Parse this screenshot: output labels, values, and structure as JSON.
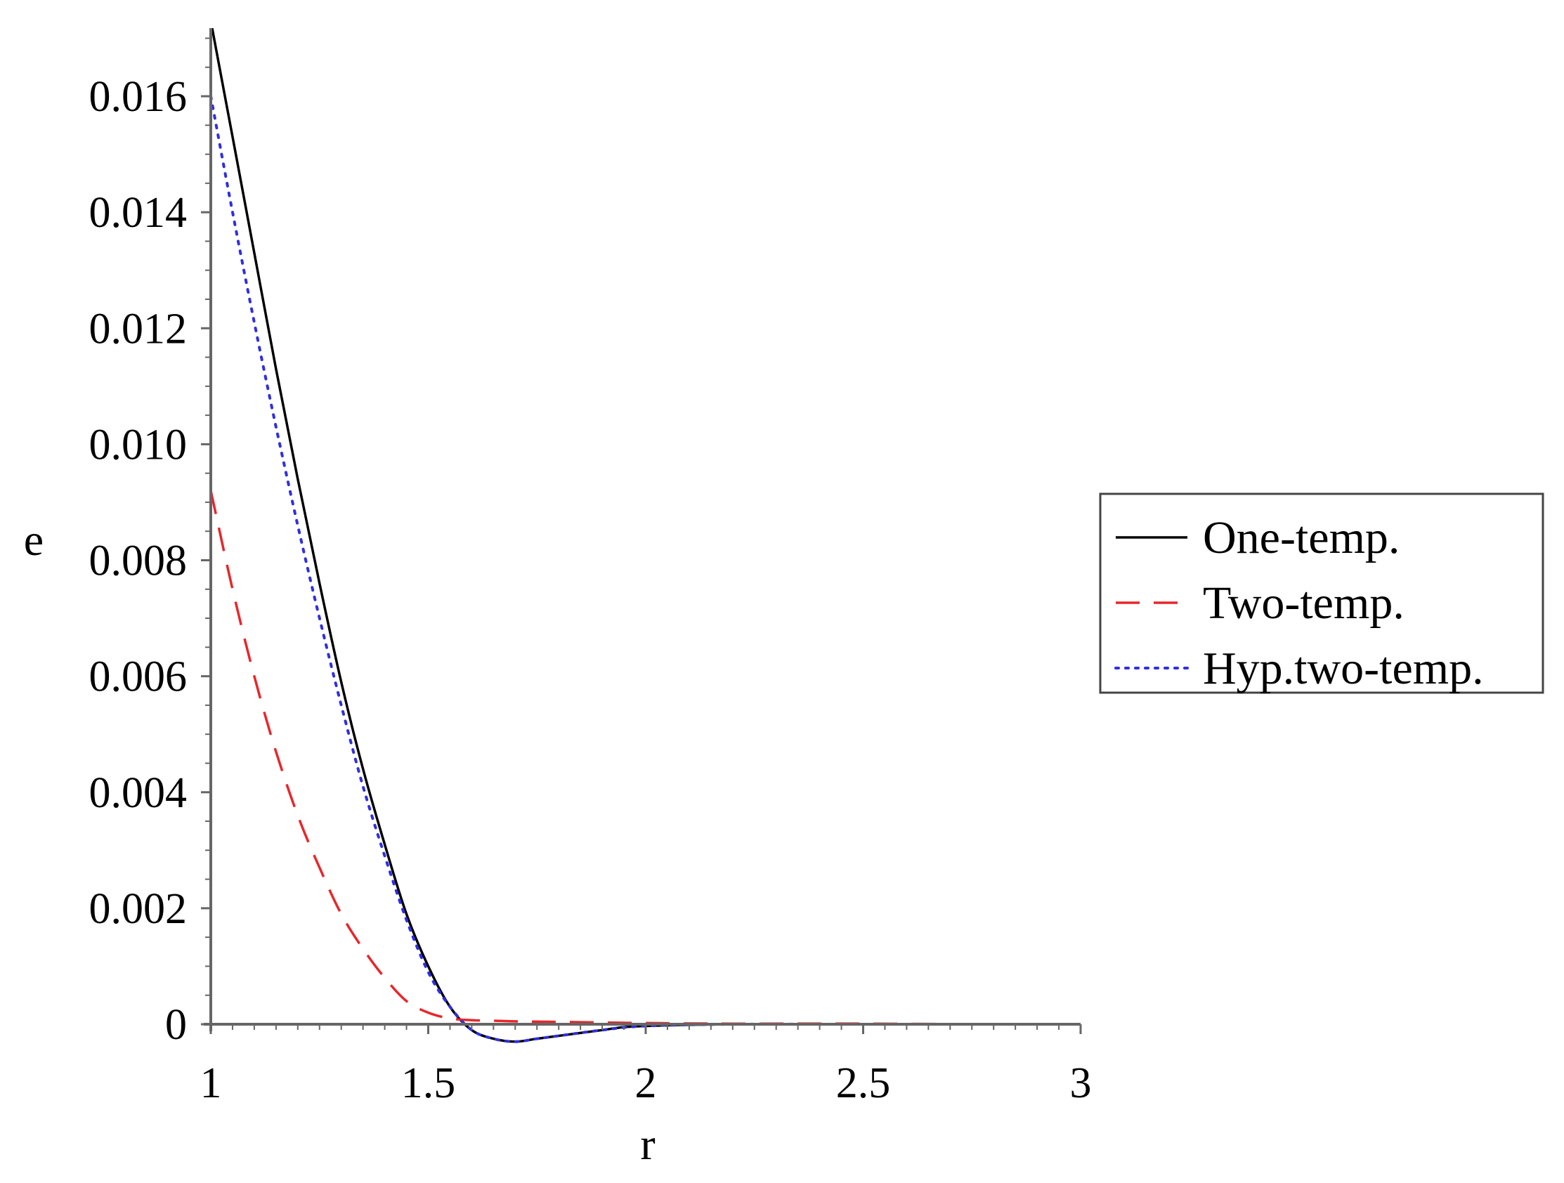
{
  "chart_data": {
    "type": "line",
    "title": "",
    "xlabel": "r",
    "ylabel": "e",
    "xlim": [
      1,
      3
    ],
    "ylim": [
      -0.0003,
      0.0172
    ],
    "x_ticks": [
      1,
      1.5,
      2,
      2.5,
      3
    ],
    "x_tick_labels": [
      "1",
      "1.5",
      "2",
      "2.5",
      "3"
    ],
    "y_ticks": [
      0,
      0.002,
      0.004,
      0.006,
      0.008,
      0.01,
      0.012,
      0.014,
      0.016
    ],
    "y_tick_labels": [
      "0",
      "0.002",
      "0.004",
      "0.006",
      "0.008",
      "0.010",
      "0.012",
      "0.014",
      "0.016"
    ],
    "grid": false,
    "legend_position": "right",
    "series": [
      {
        "name": "One-temp.",
        "color": "#000000",
        "style": "solid",
        "x": [
          1.0,
          1.05,
          1.1,
          1.15,
          1.2,
          1.25,
          1.3,
          1.35,
          1.4,
          1.45,
          1.5,
          1.55,
          1.6,
          1.65,
          1.7,
          1.75,
          1.8,
          1.85,
          1.9,
          1.95,
          2.0,
          2.1,
          2.2,
          2.4,
          2.6,
          2.8,
          3.0
        ],
        "y": [
          0.0173,
          0.0153,
          0.0133,
          0.0113,
          0.0094,
          0.0076,
          0.0059,
          0.0044,
          0.0031,
          0.0019,
          0.001,
          0.0003,
          -0.0001,
          -0.00025,
          -0.0003,
          -0.00025,
          -0.0002,
          -0.00015,
          -0.0001,
          -5e-05,
          -3e-05,
          -1e-05,
          0.0,
          0.0,
          0.0,
          0.0,
          0.0
        ]
      },
      {
        "name": "Two-temp.",
        "color": "#e8262b",
        "style": "dashed",
        "x": [
          1.0,
          1.05,
          1.1,
          1.15,
          1.2,
          1.25,
          1.3,
          1.35,
          1.4,
          1.45,
          1.5,
          1.55,
          1.6,
          1.65,
          1.7,
          1.8,
          2.0,
          2.2,
          2.5,
          2.8,
          3.0
        ],
        "y": [
          0.0092,
          0.0075,
          0.006,
          0.0047,
          0.0036,
          0.0027,
          0.0019,
          0.0013,
          0.0008,
          0.0004,
          0.0002,
          0.0001,
          7e-05,
          6e-05,
          5e-05,
          4e-05,
          2e-05,
          1e-05,
          1e-05,
          0.0,
          0.0
        ]
      },
      {
        "name": "Hyp.two-temp.",
        "color": "#2f2fe0",
        "style": "dotted",
        "x": [
          1.0,
          1.05,
          1.1,
          1.15,
          1.2,
          1.25,
          1.3,
          1.35,
          1.4,
          1.45,
          1.5,
          1.55,
          1.6,
          1.65,
          1.7,
          1.75,
          1.8,
          1.9,
          2.0,
          2.2,
          2.4,
          2.6,
          2.8,
          3.0
        ],
        "y": [
          0.016,
          0.014,
          0.0121,
          0.0103,
          0.0086,
          0.007,
          0.0055,
          0.0041,
          0.0029,
          0.0018,
          0.0009,
          0.0003,
          -0.0001,
          -0.00025,
          -0.0003,
          -0.00025,
          -0.0002,
          -0.0001,
          -3e-05,
          0.0,
          0.0,
          0.0,
          0.0,
          0.0
        ]
      }
    ]
  }
}
